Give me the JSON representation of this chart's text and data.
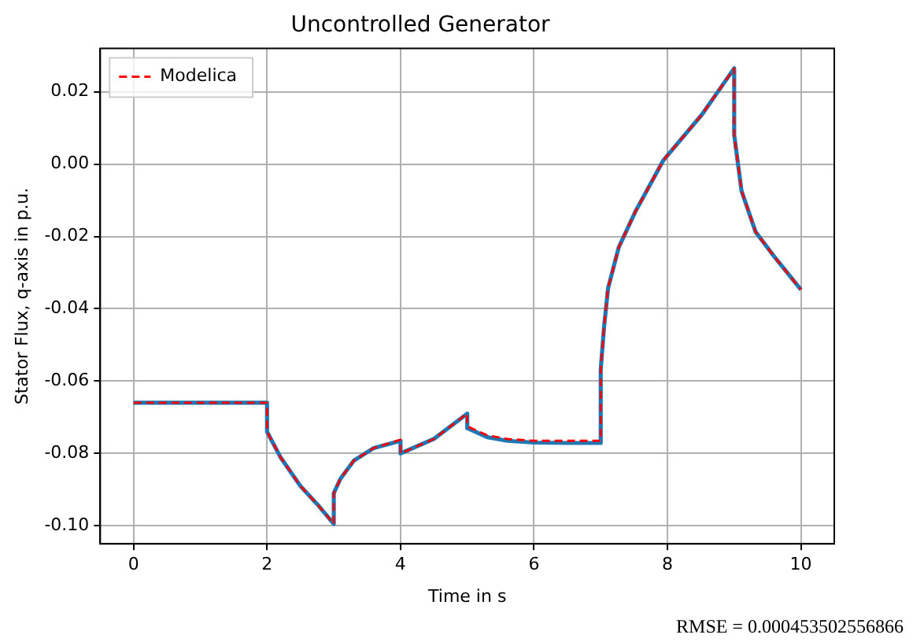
{
  "chart_data": {
    "type": "line",
    "title": "Uncontrolled Generator",
    "xlabel": "Time in s",
    "ylabel": "Stator Flux, q-axis in p.u.",
    "annotations": [
      "RMSE = 0.000453502556866"
    ],
    "xlim": [
      -0.5,
      10.5
    ],
    "ylim": [
      -0.105,
      0.032
    ],
    "xticks": [
      0,
      2,
      4,
      6,
      8,
      10
    ],
    "yticks": [
      {
        "value": -0.1,
        "label": "-0.10"
      },
      -0.08,
      -0.06,
      -0.04,
      -0.02,
      {
        "value": 0,
        "label": "0.00"
      },
      0.02
    ],
    "grid": true,
    "legend": "top left",
    "series": [
      {
        "name": "Modelica",
        "color": "#ff0000",
        "line_style": "dashed",
        "x": [
          0,
          2,
          2,
          2.2,
          2.5,
          2.75,
          3,
          3,
          3.1,
          3.3,
          3.6,
          4,
          4,
          4.5,
          5,
          5,
          5.3,
          5.6,
          6,
          6.5,
          7,
          7,
          7.05,
          7.11,
          7.27,
          7.52,
          7.94,
          8.52,
          9,
          9,
          9.11,
          9.32,
          9.61,
          10
        ],
        "values": [
          -0.066,
          -0.066,
          -0.074,
          -0.081,
          -0.089,
          -0.094,
          -0.0995,
          -0.091,
          -0.087,
          -0.082,
          -0.0785,
          -0.0762,
          -0.08,
          -0.076,
          -0.069,
          -0.0725,
          -0.075,
          -0.076,
          -0.0765,
          -0.0765,
          -0.0765,
          -0.0568,
          -0.045,
          -0.0343,
          -0.023,
          -0.0131,
          0.0011,
          0.0138,
          0.0265,
          0.0081,
          -0.0074,
          -0.0187,
          -0.0258,
          -0.0347
        ]
      },
      {
        "color": "#1f77b4",
        "line_style": "solid",
        "x": [
          0,
          2,
          2,
          2.2,
          2.5,
          2.75,
          3,
          3,
          3.1,
          3.3,
          3.6,
          4,
          4,
          4.5,
          5,
          5,
          5.3,
          5.6,
          6,
          6.5,
          7,
          7,
          7.05,
          7.11,
          7.27,
          7.52,
          7.94,
          8.52,
          9,
          9,
          9.11,
          9.32,
          9.61,
          10
        ],
        "values": [
          -0.066,
          -0.066,
          -0.074,
          -0.081,
          -0.089,
          -0.094,
          -0.0995,
          -0.091,
          -0.087,
          -0.082,
          -0.0785,
          -0.0765,
          -0.08,
          -0.076,
          -0.069,
          -0.073,
          -0.0755,
          -0.0765,
          -0.077,
          -0.0771,
          -0.0771,
          -0.0568,
          -0.045,
          -0.0343,
          -0.023,
          -0.0131,
          0.0011,
          0.0138,
          0.0265,
          0.0081,
          -0.0074,
          -0.0187,
          -0.0258,
          -0.0347
        ]
      }
    ]
  }
}
